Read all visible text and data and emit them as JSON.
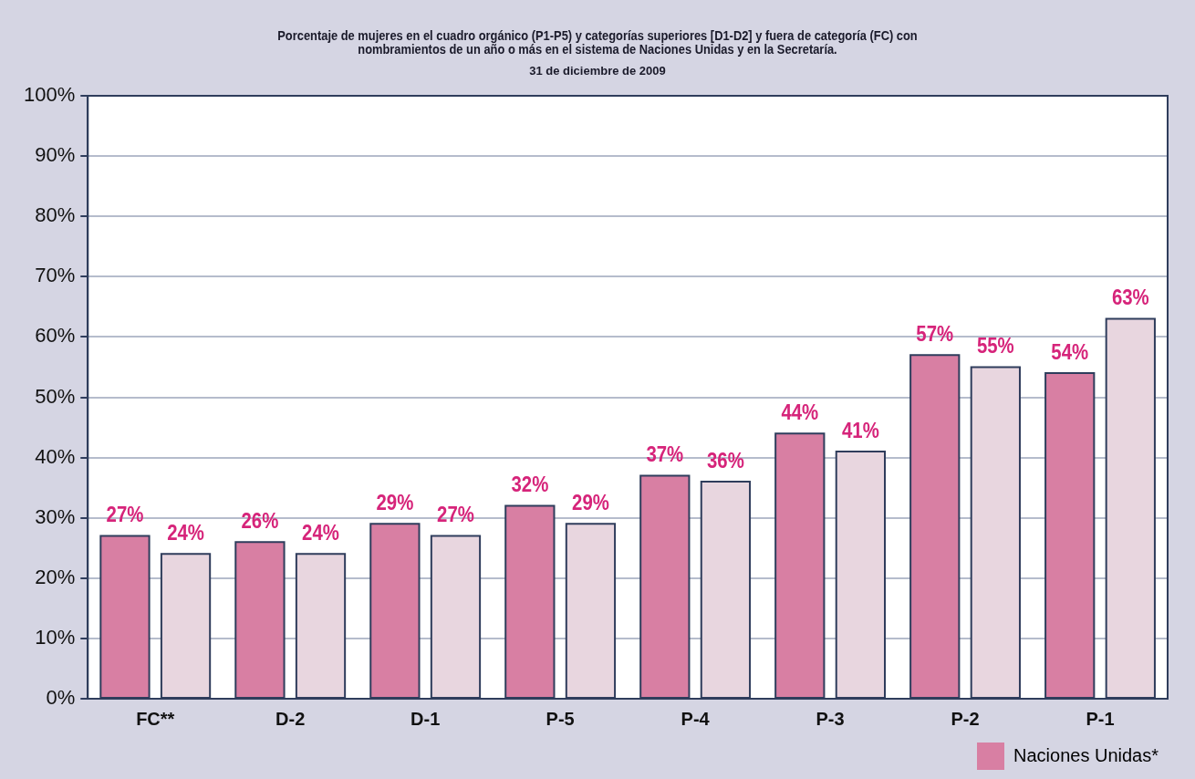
{
  "chart_data": {
    "type": "bar",
    "title": "Porcentaje de mujeres en el cuadro orgánico (P1-P5) y categorías superiores [D1-D2] y fuera de categoría (FC) con nombramientos de un año o más en el sistema de Naciones Unidas y en la Secretaría.",
    "subtitle": "31 de diciembre de 2009",
    "categories": [
      "FC**",
      "D-2",
      "D-1",
      "P-5",
      "P-4",
      "P-3",
      "P-2",
      "P-1"
    ],
    "series": [
      {
        "name": "Naciones Unidas*",
        "color": "#d87fa3",
        "values": [
          27,
          26,
          29,
          32,
          37,
          44,
          57,
          54
        ],
        "value_labels": [
          "27%",
          "26%",
          "29%",
          "32%",
          "37%",
          "44%",
          "57%",
          "54%"
        ]
      },
      {
        "color": "#e8d6df",
        "values": [
          24,
          24,
          27,
          29,
          36,
          41,
          55,
          63
        ],
        "value_labels": [
          "24%",
          "24%",
          "27%",
          "29%",
          "36%",
          "41%",
          "55%",
          "63%"
        ]
      }
    ],
    "ylim": [
      0,
      100
    ],
    "yticks": [
      {
        "value": 0,
        "label": "0%"
      },
      {
        "value": 10,
        "label": "10%"
      },
      {
        "value": 20,
        "label": "20%"
      },
      {
        "value": 30,
        "label": "30%"
      },
      {
        "value": 40,
        "label": "40%"
      },
      {
        "value": 50,
        "label": "50%"
      },
      {
        "value": 60,
        "label": "60%"
      },
      {
        "value": 70,
        "label": "70%"
      },
      {
        "value": 80,
        "label": "80%"
      },
      {
        "value": 90,
        "label": "90%"
      },
      {
        "value": 100,
        "label": "100%"
      }
    ],
    "grid": "y",
    "legend": "bottom right"
  }
}
